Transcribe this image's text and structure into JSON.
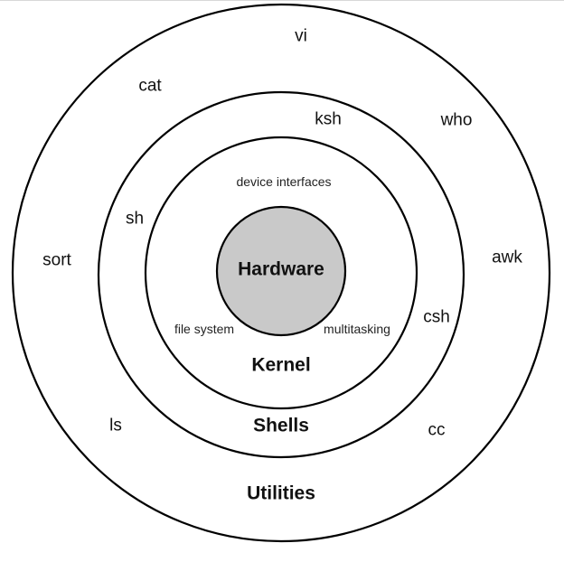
{
  "colors": {
    "hardware_fill": "#c9c9c9",
    "line": "#000000",
    "background": "#ffffff"
  },
  "layers": {
    "hardware": "Hardware",
    "kernel": "Kernel",
    "shells": "Shells",
    "utilities": "Utilities"
  },
  "kernel_items": {
    "device_interfaces": "device interfaces",
    "file_system": "file system",
    "multitasking": "multitasking"
  },
  "shell_items": {
    "ksh": "ksh",
    "sh": "sh",
    "csh": "csh"
  },
  "utility_items": {
    "vi": "vi",
    "cat": "cat",
    "who": "who",
    "sort": "sort",
    "awk": "awk",
    "ls": "ls",
    "cc": "cc"
  }
}
